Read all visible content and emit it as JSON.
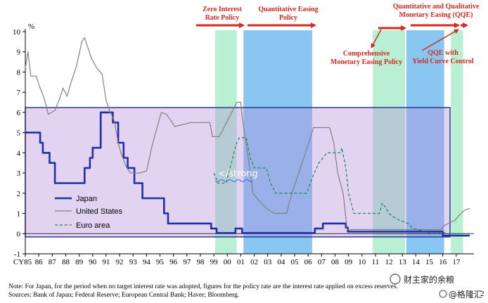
{
  "chart_data": {
    "type": "line",
    "ylabel": "%",
    "ylim": [
      -1,
      10
    ],
    "xlim": [
      1985,
      2018
    ],
    "yticks": [
      "-1",
      "0",
      "1",
      "2",
      "3",
      "4",
      "5",
      "6",
      "7",
      "8",
      "9",
      "10"
    ],
    "xticks": [
      "CY85",
      "86",
      "87",
      "88",
      "89",
      "90",
      "91",
      "92",
      "93",
      "94",
      "95",
      "96",
      "97",
      "98",
      "99",
      "00",
      "01",
      "02",
      "03",
      "04",
      "05",
      "06",
      "07",
      "08",
      "09",
      "10",
      "11",
      "12",
      "13",
      "14",
      "15",
      "16",
      "17"
    ],
    "periods": [
      {
        "from": 1999.1,
        "to": 2000.7,
        "color": "#b9f0d3"
      },
      {
        "from": 2001.2,
        "to": 2006.3,
        "color": "#89c7f2"
      },
      {
        "from": 2010.8,
        "to": 2013.2,
        "color": "#b9f0d3"
      },
      {
        "from": 2013.3,
        "to": 2016.1,
        "color": "#89c7f2"
      },
      {
        "from": 2016.6,
        "to": 2017.5,
        "color": "#b9f0d3"
      }
    ],
    "annotations": {
      "zirp": "Zero Interest\nRate Policy",
      "qe": "Quantitative Easing\nPolicy",
      "qqe": "Quantitative and Qualitative\nMonetary Easing (QQE)",
      "cme": "Comprehensive\nMonetary Easing Policy",
      "ycc": "QQE with\nYield Curve Control"
    },
    "series": [
      {
        "name": "Japan",
        "color": "#1f2fa8",
        "style": "solid",
        "width": 2.6,
        "points": [
          [
            1985,
            5
          ],
          [
            1986.1,
            5
          ],
          [
            1986.1,
            4.5
          ],
          [
            1986.3,
            4.5
          ],
          [
            1986.3,
            4
          ],
          [
            1986.8,
            4
          ],
          [
            1986.8,
            3.5
          ],
          [
            1987.2,
            3.5
          ],
          [
            1987.2,
            2.5
          ],
          [
            1989.4,
            2.5
          ],
          [
            1989.4,
            3.25
          ],
          [
            1989.8,
            3.25
          ],
          [
            1989.8,
            3.75
          ],
          [
            1990.0,
            3.75
          ],
          [
            1990.0,
            4.25
          ],
          [
            1990.6,
            4.25
          ],
          [
            1990.6,
            6
          ],
          [
            1991.5,
            6
          ],
          [
            1991.5,
            5.5
          ],
          [
            1991.9,
            5.5
          ],
          [
            1991.9,
            4.5
          ],
          [
            1992.3,
            4.5
          ],
          [
            1992.3,
            3.75
          ],
          [
            1992.6,
            3.75
          ],
          [
            1992.6,
            3.25
          ],
          [
            1993.1,
            3.25
          ],
          [
            1993.1,
            2.5
          ],
          [
            1993.7,
            2.5
          ],
          [
            1993.7,
            1.75
          ],
          [
            1995.3,
            1.75
          ],
          [
            1995.3,
            1
          ],
          [
            1995.6,
            1
          ],
          [
            1995.6,
            0.5
          ],
          [
            1998.8,
            0.5
          ],
          [
            1998.8,
            0.25
          ],
          [
            1999.2,
            0.25
          ],
          [
            1999.2,
            0.03
          ],
          [
            2000.6,
            0.03
          ],
          [
            2000.6,
            0.25
          ],
          [
            2001.1,
            0.25
          ],
          [
            2001.1,
            0.03
          ],
          [
            2006.5,
            0.03
          ],
          [
            2006.5,
            0.25
          ],
          [
            2007.1,
            0.25
          ],
          [
            2007.1,
            0.5
          ],
          [
            2008.8,
            0.5
          ],
          [
            2008.8,
            0.3
          ],
          [
            2008.95,
            0.3
          ],
          [
            2008.95,
            0.1
          ],
          [
            2016.0,
            0.1
          ],
          [
            2016.0,
            -0.1
          ],
          [
            2018,
            -0.1
          ]
        ]
      },
      {
        "name": "United States",
        "color": "#808080",
        "style": "solid",
        "width": 1.2,
        "points": [
          [
            1985,
            8.2
          ],
          [
            1985.2,
            9
          ],
          [
            1985.4,
            7.8
          ],
          [
            1985.8,
            7.8
          ],
          [
            1986.1,
            7.2
          ],
          [
            1986.4,
            6.7
          ],
          [
            1986.7,
            5.9
          ],
          [
            1987.2,
            6.1
          ],
          [
            1987.5,
            6.6
          ],
          [
            1987.8,
            7.2
          ],
          [
            1988.1,
            6.8
          ],
          [
            1988.4,
            7.5
          ],
          [
            1988.8,
            8.3
          ],
          [
            1989.2,
            9.5
          ],
          [
            1989.4,
            9.7
          ],
          [
            1989.6,
            9.3
          ],
          [
            1989.9,
            8.7
          ],
          [
            1990.3,
            8.2
          ],
          [
            1990.7,
            7.9
          ],
          [
            1991.0,
            6.6
          ],
          [
            1991.3,
            6
          ],
          [
            1991.6,
            5.6
          ],
          [
            1991.9,
            4.5
          ],
          [
            1992.1,
            4
          ],
          [
            1992.5,
            3.3
          ],
          [
            1992.8,
            3
          ],
          [
            1993.5,
            3
          ],
          [
            1994.0,
            3.1
          ],
          [
            1994.4,
            4.3
          ],
          [
            1994.8,
            5.3
          ],
          [
            1995.1,
            6
          ],
          [
            1995.5,
            5.9
          ],
          [
            1995.8,
            5.6
          ],
          [
            1996.1,
            5.3
          ],
          [
            1997.3,
            5.5
          ],
          [
            1998.7,
            5.5
          ],
          [
            1998.9,
            4.8
          ],
          [
            1999.4,
            4.8
          ],
          [
            1999.8,
            5.3
          ],
          [
            2000.4,
            6.1
          ],
          [
            2000.7,
            6.5
          ],
          [
            2001.0,
            6.5
          ],
          [
            2001.1,
            5.8
          ],
          [
            2001.5,
            4
          ],
          [
            2001.9,
            2
          ],
          [
            2002.2,
            1.75
          ],
          [
            2002.9,
            1.25
          ],
          [
            2003.5,
            1
          ],
          [
            2004.4,
            1
          ],
          [
            2004.8,
            2
          ],
          [
            2005.3,
            3
          ],
          [
            2005.8,
            4
          ],
          [
            2006.4,
            5.25
          ],
          [
            2007.6,
            5.25
          ],
          [
            2007.9,
            4.5
          ],
          [
            2008.2,
            3
          ],
          [
            2008.6,
            2
          ],
          [
            2008.9,
            0.2
          ],
          [
            2015.9,
            0.2
          ],
          [
            2016.1,
            0.4
          ],
          [
            2016.9,
            0.65
          ],
          [
            2017.2,
            0.9
          ],
          [
            2017.6,
            1.15
          ],
          [
            2018,
            1.25
          ]
        ]
      },
      {
        "name": "Euro area",
        "color": "#1f8a52",
        "style": "dashed",
        "width": 1.3,
        "points": [
          [
            1999.0,
            3
          ],
          [
            1999.3,
            2.5
          ],
          [
            1999.9,
            2.5
          ],
          [
            2000.3,
            3.5
          ],
          [
            2000.7,
            4.5
          ],
          [
            2000.9,
            4.75
          ],
          [
            2001.4,
            4.75
          ],
          [
            2001.7,
            3.75
          ],
          [
            2002.0,
            3.25
          ],
          [
            2002.9,
            3.25
          ],
          [
            2003.2,
            2.5
          ],
          [
            2003.6,
            2
          ],
          [
            2005.9,
            2
          ],
          [
            2006.3,
            2.75
          ],
          [
            2006.8,
            3.5
          ],
          [
            2007.4,
            4
          ],
          [
            2008.4,
            4
          ],
          [
            2008.5,
            4.25
          ],
          [
            2008.8,
            3.25
          ],
          [
            2009.0,
            2
          ],
          [
            2009.4,
            1
          ],
          [
            2011.3,
            1
          ],
          [
            2011.5,
            1.5
          ],
          [
            2011.8,
            1.25
          ],
          [
            2012.0,
            1
          ],
          [
            2012.5,
            0.75
          ],
          [
            2013.4,
            0.5
          ],
          [
            2013.8,
            0.25
          ],
          [
            2014.4,
            0.15
          ],
          [
            2014.7,
            0.05
          ],
          [
            2016.1,
            0.05
          ],
          [
            2016.2,
            0
          ],
          [
            2018,
            0
          ]
        ]
      }
    ]
  },
  "overlay_text": "</strong",
  "notes": {
    "note": "Note: For Japan, for the period when no target interest rate was adopted, figures for the policy rate are the interest rate applied on excess reserves.",
    "sources": "Sources: Bank of Japan; Federal Reserve; European Central Bank; Haver; Bloomberg."
  },
  "watermark": {
    "text": "财主家的余粮",
    "text2": "@格隆汇",
    "page": "2"
  }
}
